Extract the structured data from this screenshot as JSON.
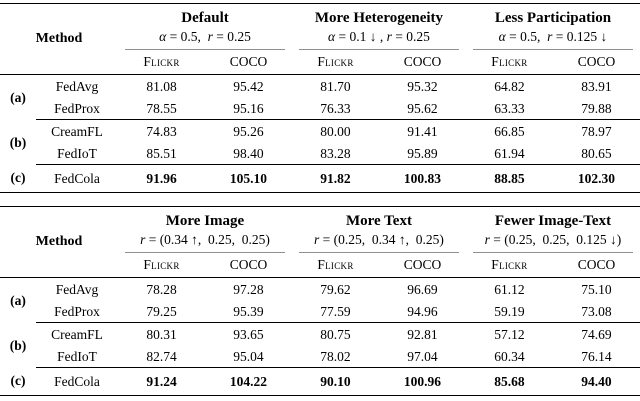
{
  "page": {
    "background": "#ffffff",
    "text_color": "#000000",
    "rule_color": "#000000",
    "cmidrule_color": "#8f8f8f"
  },
  "tables": [
    {
      "name": "federated-settings-results",
      "method_header": "Method",
      "dataset_headers": [
        "Flickr",
        "COCO"
      ],
      "groups": [
        {
          "title": "Default",
          "condition": "α = 0.5, r = 0.25"
        },
        {
          "title": "More Heterogeneity",
          "condition": "α = 0.1 ↓ , r = 0.25"
        },
        {
          "title": "Less Participation",
          "condition": "α = 0.5, r = 0.125 ↓"
        }
      ],
      "row_groups": [
        {
          "label": "(a)",
          "rows": [
            {
              "method": "FedAvg",
              "values": [
                "81.08",
                "95.42",
                "81.70",
                "95.32",
                "64.82",
                "83.91"
              ]
            },
            {
              "method": "FedProx",
              "values": [
                "78.55",
                "95.16",
                "76.33",
                "95.62",
                "63.33",
                "79.88"
              ]
            }
          ]
        },
        {
          "label": "(b)",
          "rows": [
            {
              "method": "CreamFL",
              "values": [
                "74.83",
                "95.26",
                "80.00",
                "91.41",
                "66.85",
                "78.97"
              ]
            },
            {
              "method": "FedIoT",
              "values": [
                "85.51",
                "98.40",
                "83.28",
                "95.89",
                "61.94",
                "80.65"
              ]
            }
          ]
        },
        {
          "label": "(c)",
          "rows": [
            {
              "method": "FedCola",
              "values": [
                "91.96",
                "105.10",
                "91.82",
                "100.83",
                "88.85",
                "102.30"
              ]
            }
          ]
        }
      ]
    },
    {
      "name": "modality-ratio-results",
      "method_header": "Method",
      "dataset_headers": [
        "Flickr",
        "COCO"
      ],
      "groups": [
        {
          "title": "More Image",
          "condition": "r = (0.34 ↑, 0.25, 0.25)"
        },
        {
          "title": "More Text",
          "condition": "r = (0.25, 0.34 ↑, 0.25)"
        },
        {
          "title": "Fewer Image-Text",
          "condition": "r = (0.25, 0.25, 0.125 ↓)"
        }
      ],
      "row_groups": [
        {
          "label": "(a)",
          "rows": [
            {
              "method": "FedAvg",
              "values": [
                "78.28",
                "97.28",
                "79.62",
                "96.69",
                "61.12",
                "75.10"
              ]
            },
            {
              "method": "FedProx",
              "values": [
                "79.25",
                "95.39",
                "77.59",
                "94.96",
                "59.19",
                "73.08"
              ]
            }
          ]
        },
        {
          "label": "(b)",
          "rows": [
            {
              "method": "CreamFL",
              "values": [
                "80.31",
                "93.65",
                "80.75",
                "92.81",
                "57.12",
                "74.69"
              ]
            },
            {
              "method": "FedIoT",
              "values": [
                "82.74",
                "95.04",
                "78.02",
                "97.04",
                "60.34",
                "76.14"
              ]
            }
          ]
        },
        {
          "label": "(c)",
          "rows": [
            {
              "method": "FedCola",
              "values": [
                "91.24",
                "104.22",
                "90.10",
                "100.96",
                "85.68",
                "94.40"
              ]
            }
          ]
        }
      ]
    }
  ]
}
